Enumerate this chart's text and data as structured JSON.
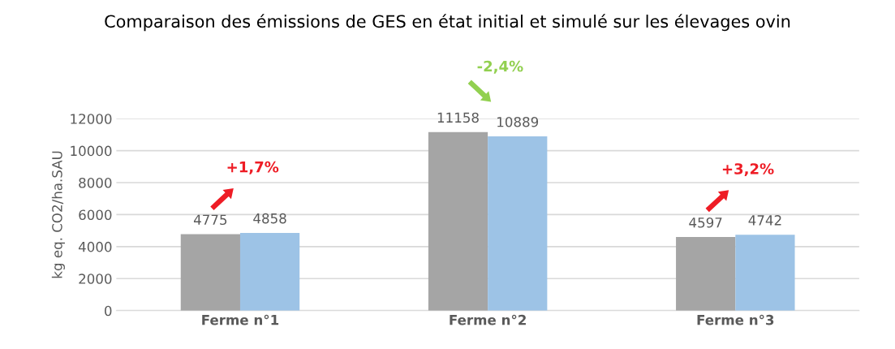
{
  "chart_data": {
    "type": "bar",
    "title": "Comparaison des émissions de GES en état initial et simulé sur les élevages ovin",
    "ylabel": "kg eq. CO2/ha.SAU",
    "categories": [
      "Ferme n°1",
      "Ferme n°2",
      "Ferme n°3"
    ],
    "series": [
      {
        "color": "#a5a5a5",
        "values": [
          4775,
          11158,
          4597
        ]
      },
      {
        "color": "#9dc3e6",
        "values": [
          4858,
          10889,
          4742
        ]
      }
    ],
    "ylim": [
      0,
      12000
    ],
    "yticks": [
      0,
      2000,
      4000,
      6000,
      8000,
      10000,
      12000
    ],
    "grid": "y",
    "data_labels": true,
    "annotations": [
      "+1,7%",
      "-2,4%",
      "+3,2%"
    ]
  }
}
